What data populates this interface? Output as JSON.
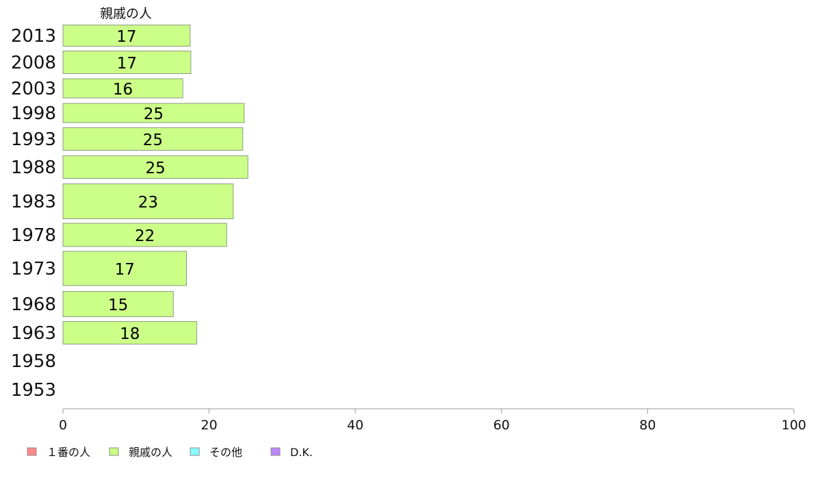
{
  "chart_data": {
    "type": "bar",
    "orientation": "horizontal",
    "title": "親戚の人",
    "categories": [
      "2013",
      "2008",
      "2003",
      "1998",
      "1993",
      "1988",
      "1983",
      "1978",
      "1973",
      "1968",
      "1963",
      "1958",
      "1953"
    ],
    "series": [
      {
        "name": "親戚の人",
        "color": "#ccff88",
        "values": [
          17.4,
          17.5,
          16.4,
          24.8,
          24.6,
          25.3,
          23.3,
          22.4,
          16.9,
          15.1,
          18.3,
          null,
          null
        ]
      }
    ],
    "data_labels": [
      "17",
      "17",
      "16",
      "25",
      "25",
      "25",
      "23",
      "22",
      "17",
      "15",
      "18",
      "",
      ""
    ],
    "xlim": [
      0,
      100
    ],
    "xticks": [
      0,
      20,
      40,
      60,
      80,
      100
    ],
    "legend": {
      "placement": "bottom-left",
      "items": [
        {
          "label": "１番の人",
          "color": "#ff8888"
        },
        {
          "label": "親戚の人",
          "color": "#ccff88"
        },
        {
          "label": "その他",
          "color": "#88ffff"
        },
        {
          "label": "D.K.",
          "color": "#bb88ff"
        }
      ]
    },
    "grid": false
  }
}
